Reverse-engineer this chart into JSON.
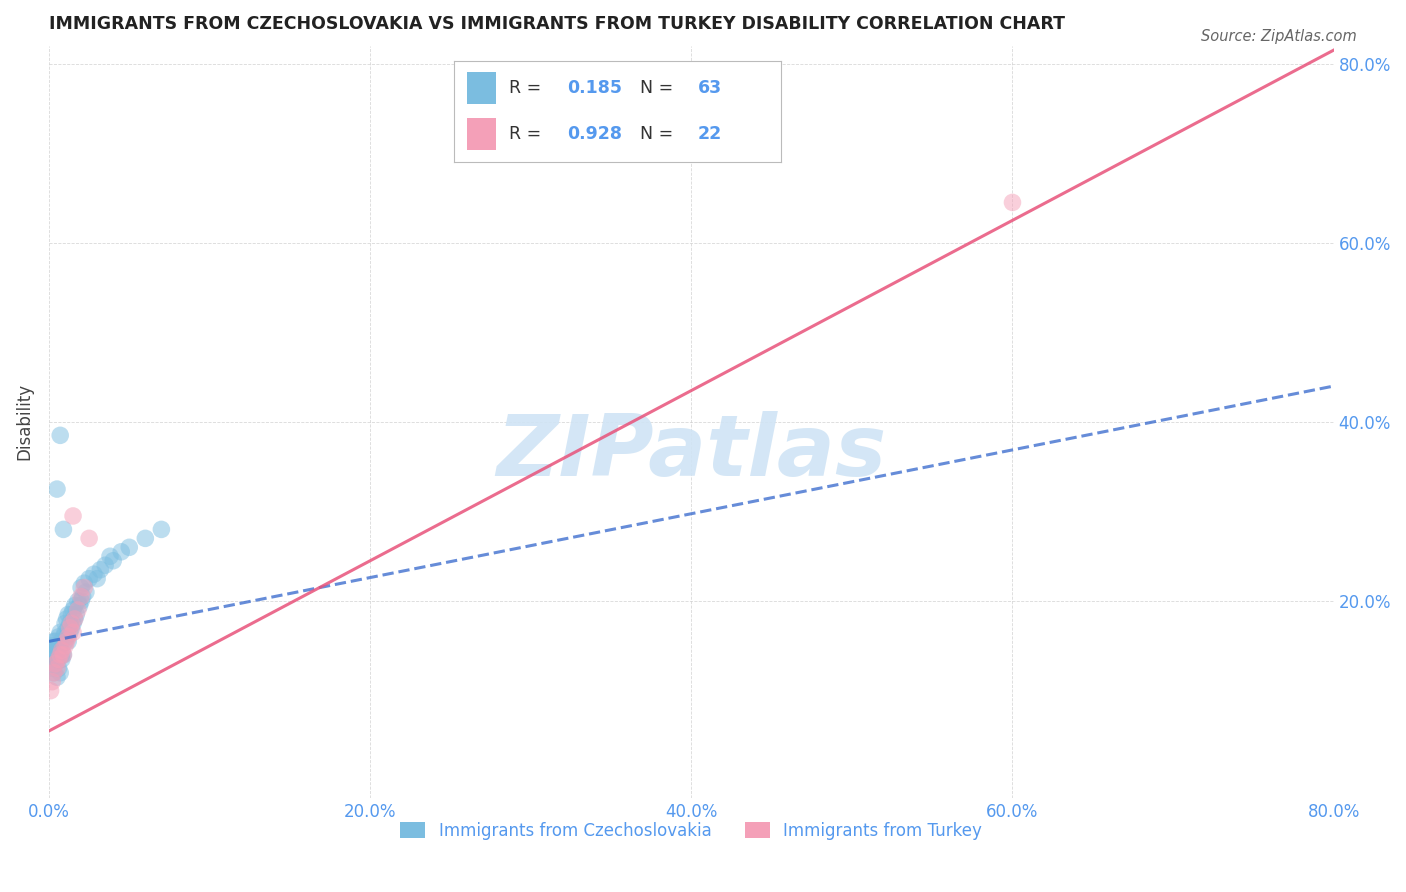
{
  "title": "IMMIGRANTS FROM CZECHOSLOVAKIA VS IMMIGRANTS FROM TURKEY DISABILITY CORRELATION CHART",
  "source": "Source: ZipAtlas.com",
  "xlabel": "",
  "ylabel": "Disability",
  "xlim": [
    0.0,
    0.8
  ],
  "ylim": [
    -0.02,
    0.82
  ],
  "xtick_labels": [
    "0.0%",
    "20.0%",
    "40.0%",
    "60.0%",
    "80.0%"
  ],
  "xtick_vals": [
    0.0,
    0.2,
    0.4,
    0.6,
    0.8
  ],
  "ytick_labels": [
    "20.0%",
    "40.0%",
    "60.0%",
    "80.0%"
  ],
  "ytick_vals": [
    0.2,
    0.4,
    0.6,
    0.8
  ],
  "background_color": "#ffffff",
  "grid_color": "#d0d0d0",
  "blue_color": "#7bbde0",
  "pink_color": "#f4a0b8",
  "blue_line_color": "#3366cc",
  "pink_line_color": "#e8527a",
  "axis_color": "#5599ee",
  "title_color": "#222222",
  "watermark_color": "#d0e4f5",
  "R_czech": 0.185,
  "N_czech": 63,
  "R_turkey": 0.928,
  "N_turkey": 22,
  "legend_R1_val": "0.185",
  "legend_N1_val": "63",
  "legend_R2_val": "0.928",
  "legend_N2_val": "22",
  "czech_x": [
    0.001,
    0.001,
    0.002,
    0.002,
    0.002,
    0.003,
    0.003,
    0.003,
    0.004,
    0.004,
    0.004,
    0.005,
    0.005,
    0.005,
    0.006,
    0.006,
    0.006,
    0.007,
    0.007,
    0.007,
    0.008,
    0.008,
    0.008,
    0.009,
    0.009,
    0.01,
    0.01,
    0.01,
    0.011,
    0.011,
    0.012,
    0.012,
    0.012,
    0.013,
    0.013,
    0.014,
    0.014,
    0.015,
    0.015,
    0.016,
    0.016,
    0.017,
    0.018,
    0.019,
    0.02,
    0.02,
    0.021,
    0.022,
    0.023,
    0.025,
    0.028,
    0.03,
    0.032,
    0.035,
    0.038,
    0.04,
    0.045,
    0.05,
    0.06,
    0.07,
    0.007,
    0.005,
    0.009
  ],
  "czech_y": [
    0.13,
    0.145,
    0.135,
    0.15,
    0.125,
    0.14,
    0.155,
    0.12,
    0.145,
    0.155,
    0.13,
    0.135,
    0.15,
    0.115,
    0.145,
    0.16,
    0.125,
    0.15,
    0.165,
    0.12,
    0.14,
    0.155,
    0.135,
    0.16,
    0.14,
    0.155,
    0.165,
    0.175,
    0.16,
    0.18,
    0.155,
    0.17,
    0.185,
    0.165,
    0.175,
    0.17,
    0.185,
    0.175,
    0.19,
    0.18,
    0.195,
    0.185,
    0.2,
    0.195,
    0.2,
    0.215,
    0.205,
    0.22,
    0.21,
    0.225,
    0.23,
    0.225,
    0.235,
    0.24,
    0.25,
    0.245,
    0.255,
    0.26,
    0.27,
    0.28,
    0.385,
    0.325,
    0.28
  ],
  "turkey_x": [
    0.001,
    0.002,
    0.003,
    0.004,
    0.005,
    0.006,
    0.007,
    0.008,
    0.009,
    0.01,
    0.011,
    0.012,
    0.013,
    0.014,
    0.015,
    0.016,
    0.018,
    0.02,
    0.022,
    0.025,
    0.6,
    0.015
  ],
  "turkey_y": [
    0.1,
    0.11,
    0.12,
    0.13,
    0.125,
    0.135,
    0.14,
    0.145,
    0.14,
    0.15,
    0.155,
    0.16,
    0.17,
    0.175,
    0.165,
    0.18,
    0.19,
    0.205,
    0.215,
    0.27,
    0.645,
    0.295
  ],
  "czech_trendline_x": [
    0.0,
    0.8
  ],
  "czech_trendline_y": [
    0.155,
    0.44
  ],
  "turkey_trendline_x": [
    0.0,
    0.8
  ],
  "turkey_trendline_y": [
    0.055,
    0.815
  ]
}
